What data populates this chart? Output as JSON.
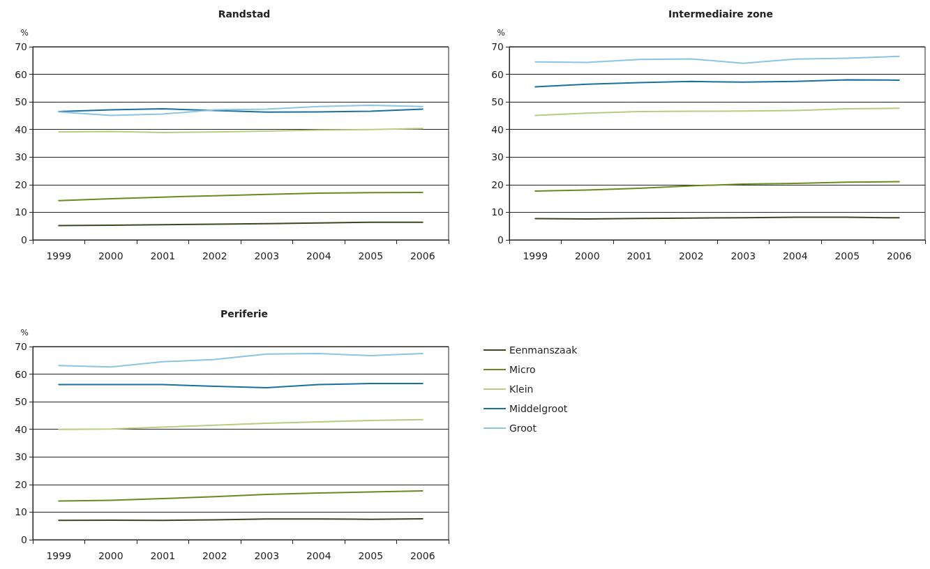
{
  "chart_data": [
    {
      "type": "line",
      "title": "Randstad",
      "ylabel": "%",
      "categories": [
        "1999",
        "2000",
        "2001",
        "2002",
        "2003",
        "2004",
        "2005",
        "2006"
      ],
      "ylim": [
        0,
        70
      ],
      "yticks": [
        0,
        10,
        20,
        30,
        40,
        50,
        60,
        70
      ],
      "grid": "y",
      "legend": false,
      "marker": "none",
      "line_style": "solid",
      "series": [
        {
          "color": "#3b4a1e",
          "values": [
            5.2,
            5.3,
            5.5,
            5.7,
            5.9,
            6.1,
            6.4,
            6.4
          ]
        },
        {
          "color": "#6b8a1e",
          "values": [
            14.2,
            14.9,
            15.5,
            16.0,
            16.5,
            16.9,
            17.1,
            17.2
          ]
        },
        {
          "color": "#b8cc82",
          "values": [
            39.1,
            39.3,
            38.9,
            39.1,
            39.4,
            39.8,
            40.0,
            40.4
          ]
        },
        {
          "color": "#1a6fa0",
          "values": [
            46.5,
            47.1,
            47.5,
            46.9,
            46.3,
            46.4,
            46.6,
            47.4
          ]
        },
        {
          "color": "#8cc4e4",
          "values": [
            46.4,
            45.1,
            45.6,
            47.1,
            47.4,
            48.3,
            48.8,
            48.3
          ]
        }
      ]
    },
    {
      "type": "line",
      "title": "Intermediaire zone",
      "ylabel": "%",
      "categories": [
        "1999",
        "2000",
        "2001",
        "2002",
        "2003",
        "2004",
        "2005",
        "2006"
      ],
      "ylim": [
        0,
        70
      ],
      "yticks": [
        0,
        10,
        20,
        30,
        40,
        50,
        60,
        70
      ],
      "grid": "y",
      "legend": false,
      "marker": "none",
      "line_style": "solid",
      "series": [
        {
          "color": "#3b4a1e",
          "values": [
            7.7,
            7.6,
            7.8,
            7.9,
            8.0,
            8.2,
            8.2,
            8.0
          ]
        },
        {
          "color": "#6b8a1e",
          "values": [
            17.7,
            18.1,
            18.7,
            19.6,
            20.2,
            20.5,
            20.9,
            21.1
          ]
        },
        {
          "color": "#b8cc82",
          "values": [
            45.1,
            45.9,
            46.5,
            46.6,
            46.7,
            46.9,
            47.5,
            47.7
          ]
        },
        {
          "color": "#1a6fa0",
          "values": [
            55.5,
            56.4,
            57.0,
            57.4,
            57.2,
            57.4,
            58.0,
            57.9
          ]
        },
        {
          "color": "#8cc4e4",
          "values": [
            64.5,
            64.3,
            65.4,
            65.6,
            64.0,
            65.5,
            65.8,
            66.5
          ]
        }
      ]
    },
    {
      "type": "line",
      "title": "Periferie",
      "ylabel": "%",
      "categories": [
        "1999",
        "2000",
        "2001",
        "2002",
        "2003",
        "2004",
        "2005",
        "2006"
      ],
      "ylim": [
        0,
        70
      ],
      "yticks": [
        0,
        10,
        20,
        30,
        40,
        50,
        60,
        70
      ],
      "grid": "y",
      "legend": "right",
      "marker": "none",
      "line_style": "solid",
      "series": [
        {
          "name": "Eenmanszaak",
          "color": "#3b4a1e",
          "values": [
            7.0,
            7.1,
            7.0,
            7.2,
            7.5,
            7.5,
            7.4,
            7.6
          ]
        },
        {
          "name": "Micro",
          "color": "#6b8a1e",
          "values": [
            14.0,
            14.3,
            14.9,
            15.6,
            16.4,
            16.9,
            17.3,
            17.7
          ]
        },
        {
          "name": "Klein",
          "color": "#b8cc82",
          "values": [
            40.0,
            40.1,
            40.8,
            41.5,
            42.2,
            42.7,
            43.2,
            43.5
          ]
        },
        {
          "name": "Middelgroot",
          "color": "#1a6fa0",
          "values": [
            56.2,
            56.2,
            56.2,
            55.6,
            55.1,
            56.2,
            56.6,
            56.6
          ]
        },
        {
          "name": "Groot",
          "color": "#8cc4e4",
          "values": [
            63.1,
            62.6,
            64.5,
            65.3,
            67.3,
            67.5,
            66.7,
            67.5
          ]
        }
      ]
    }
  ]
}
